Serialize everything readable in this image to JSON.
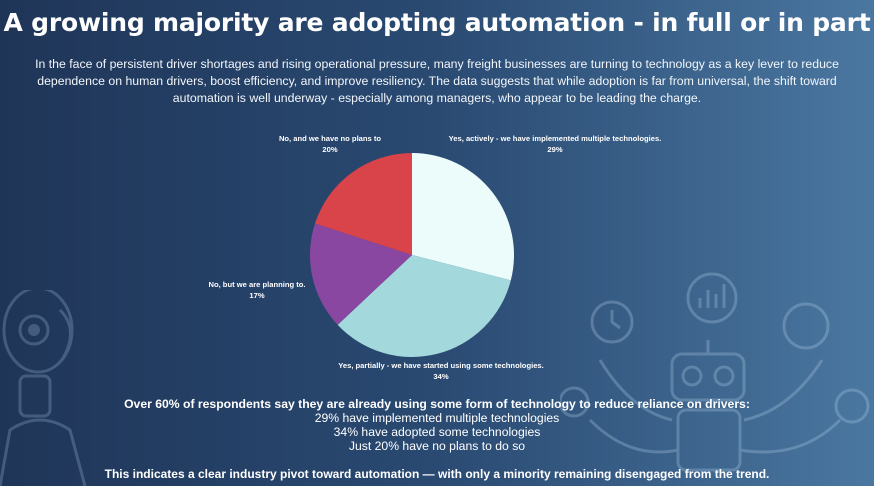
{
  "title": "A growing majority are adopting automation - in full or in part",
  "intro": "In the face of persistent driver shortages and rising operational pressure, many freight businesses are turning to technology as a key lever to reduce dependence on human drivers, boost efficiency, and improve resiliency. The data suggests that while adoption is far from universal, the shift toward automation is well underway - especially among managers, who appear to be leading the charge.",
  "chart_data": {
    "type": "pie",
    "title": "",
    "slices": [
      {
        "label": "Yes, actively - we have implemented multiple technologies.",
        "value": 29,
        "value_label": "29%",
        "color": "#ebfcfa"
      },
      {
        "label": "Yes, partially - we have started using some technologies.",
        "value": 34,
        "value_label": "34%",
        "color": "#a3d8dc"
      },
      {
        "label": "No, but we are planning to.",
        "value": 17,
        "value_label": "17%",
        "color": "#8a47a2"
      },
      {
        "label": "No, and we have no plans to",
        "value": 20,
        "value_label": "20%",
        "color": "#d9434a"
      }
    ]
  },
  "summary": {
    "headline": "Over 60% of respondents say they are already using some form of technology to reduce reliance on drivers:",
    "lines": [
      "29% have implemented multiple technologies",
      "34% have adopted some technologies",
      "Just 20% have no plans to do so"
    ]
  },
  "conclusion": "This indicates a clear industry pivot toward automation — with only a minority remaining disengaged from the trend.",
  "decor_icons": [
    "robot-head-icon",
    "robot-icon",
    "bar-chart-icon",
    "clock-icon",
    "ai-chip-icon",
    "gear-icon",
    "camera-icon"
  ]
}
